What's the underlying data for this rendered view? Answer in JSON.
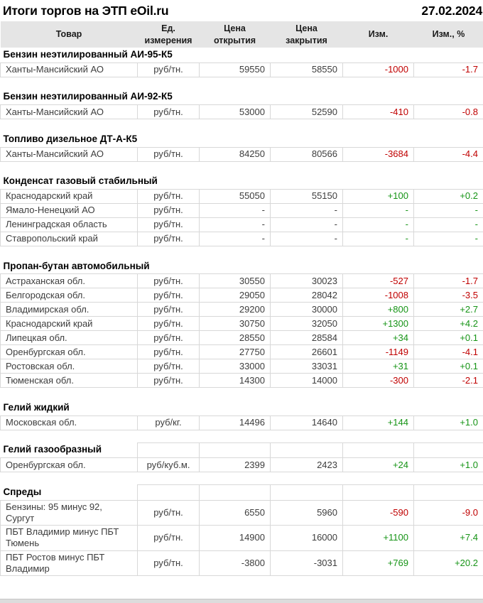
{
  "page": {
    "title": "Итоги торгов на ЭТП eOil.ru",
    "date": "27.02.2024"
  },
  "colors": {
    "negative": "#c00000",
    "positive": "#169416",
    "header_bg": "#e5e5e5",
    "border": "#d8d8d8"
  },
  "table": {
    "columns": [
      "Товар",
      "Ед. измерения",
      "Цена открытия",
      "Цена закрытия",
      "Изм.",
      "Изм., %"
    ],
    "sections": [
      {
        "name": "Бензин неэтилированный АИ-95-К5",
        "bordered_header": false,
        "rows": [
          {
            "product": "Ханты-Мансийский АО",
            "unit": "руб/тн.",
            "open": "59550",
            "close": "58550",
            "change": "-1000",
            "change_pct": "-1.7",
            "trend": "neg"
          }
        ]
      },
      {
        "name": "Бензин неэтилированный АИ-92-К5",
        "bordered_header": false,
        "rows": [
          {
            "product": "Ханты-Мансийский АО",
            "unit": "руб/тн.",
            "open": "53000",
            "close": "52590",
            "change": "-410",
            "change_pct": "-0.8",
            "trend": "neg"
          }
        ]
      },
      {
        "name": "Топливо дизельное ДТ-А-К5",
        "bordered_header": false,
        "rows": [
          {
            "product": "Ханты-Мансийский АО",
            "unit": "руб/тн.",
            "open": "84250",
            "close": "80566",
            "change": "-3684",
            "change_pct": "-4.4",
            "trend": "neg"
          }
        ]
      },
      {
        "name": "Конденсат газовый стабильный",
        "bordered_header": false,
        "rows": [
          {
            "product": "Краснодарский край",
            "unit": "руб/тн.",
            "open": "55050",
            "close": "55150",
            "change": "+100",
            "change_pct": "+0.2",
            "trend": "pos"
          },
          {
            "product": "Ямало-Ненецкий АО",
            "unit": "руб/тн.",
            "open": "-",
            "close": "-",
            "change": "-",
            "change_pct": "-",
            "trend": "flat"
          },
          {
            "product": "Ленинградская область",
            "unit": "руб/тн.",
            "open": "-",
            "close": "-",
            "change": "-",
            "change_pct": "-",
            "trend": "flat"
          },
          {
            "product": "Ставропольский край",
            "unit": "руб/тн.",
            "open": "-",
            "close": "-",
            "change": "-",
            "change_pct": "-",
            "trend": "flat"
          }
        ]
      },
      {
        "name": "Пропан-бутан автомобильный",
        "bordered_header": false,
        "rows": [
          {
            "product": "Астраханская обл.",
            "unit": "руб/тн.",
            "open": "30550",
            "close": "30023",
            "change": "-527",
            "change_pct": "-1.7",
            "trend": "neg"
          },
          {
            "product": "Белгородская обл.",
            "unit": "руб/тн.",
            "open": "29050",
            "close": "28042",
            "change": "-1008",
            "change_pct": "-3.5",
            "trend": "neg"
          },
          {
            "product": "Владимирская обл.",
            "unit": "руб/тн.",
            "open": "29200",
            "close": "30000",
            "change": "+800",
            "change_pct": "+2.7",
            "trend": "pos"
          },
          {
            "product": "Краснодарский край",
            "unit": "руб/тн.",
            "open": "30750",
            "close": "32050",
            "change": "+1300",
            "change_pct": "+4.2",
            "trend": "pos"
          },
          {
            "product": "Липецкая обл.",
            "unit": "руб/тн.",
            "open": "28550",
            "close": "28584",
            "change": "+34",
            "change_pct": "+0.1",
            "trend": "pos"
          },
          {
            "product": "Оренбургская обл.",
            "unit": "руб/тн.",
            "open": "27750",
            "close": "26601",
            "change": "-1149",
            "change_pct": "-4.1",
            "trend": "neg"
          },
          {
            "product": "Ростовская обл.",
            "unit": "руб/тн.",
            "open": "33000",
            "close": "33031",
            "change": "+31",
            "change_pct": "+0.1",
            "trend": "pos"
          },
          {
            "product": "Тюменская обл.",
            "unit": "руб/тн.",
            "open": "14300",
            "close": "14000",
            "change": "-300",
            "change_pct": "-2.1",
            "trend": "neg"
          }
        ]
      },
      {
        "name": "Гелий жидкий",
        "bordered_header": false,
        "rows": [
          {
            "product": "Московская обл.",
            "unit": "руб/кг.",
            "open": "14496",
            "close": "14640",
            "change": "+144",
            "change_pct": "+1.0",
            "trend": "pos"
          }
        ]
      },
      {
        "name": "Гелий газообразный",
        "bordered_header": true,
        "rows": [
          {
            "product": "Оренбургская обл.",
            "unit": "руб/куб.м.",
            "open": "2399",
            "close": "2423",
            "change": "+24",
            "change_pct": "+1.0",
            "trend": "pos"
          }
        ]
      },
      {
        "name": "Спреды",
        "bordered_header": true,
        "rows": [
          {
            "product": "Бензины: 95 минус 92, Сургут",
            "unit": "руб/тн.",
            "open": "6550",
            "close": "5960",
            "change": "-590",
            "change_pct": "-9.0",
            "trend": "neg"
          },
          {
            "product": "ПБТ Владимир минус ПБТ Тюмень",
            "unit": "руб/тн.",
            "open": "14900",
            "close": "16000",
            "change": "+1100",
            "change_pct": "+7.4",
            "trend": "pos"
          },
          {
            "product": "ПБТ Ростов минус ПБТ Владимир",
            "unit": "руб/тн.",
            "open": "-3800",
            "close": "-3031",
            "change": "+769",
            "change_pct": "+20.2",
            "trend": "pos"
          }
        ]
      }
    ]
  }
}
